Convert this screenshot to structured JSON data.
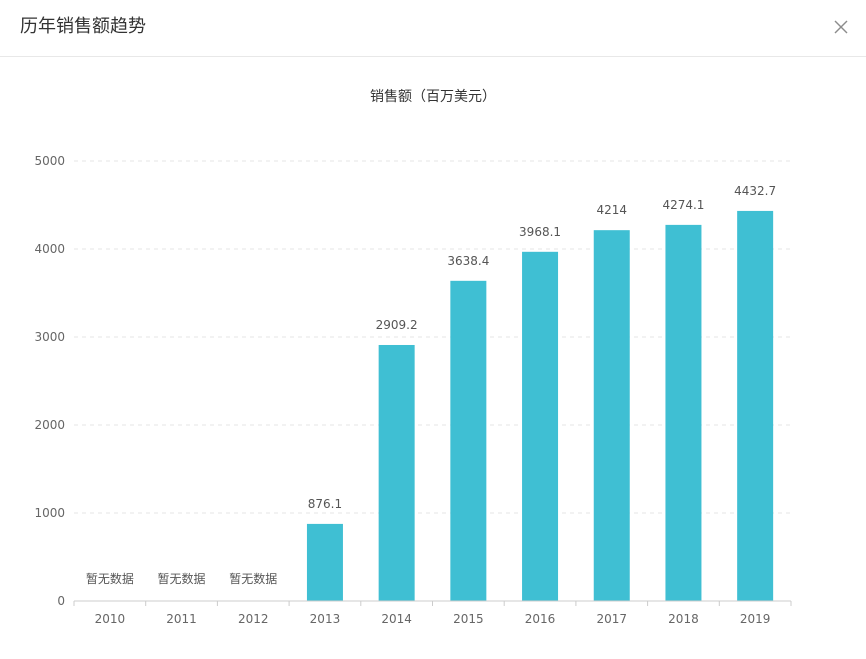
{
  "modal": {
    "title": "历年销售额趋势"
  },
  "icons": {
    "close": "close-icon"
  },
  "colors": {
    "bar": "#3FBFD3",
    "axis": "#cccccc",
    "grid": "#e6e6e6",
    "tick_text": "#666666",
    "label_text": "#555555"
  },
  "chart_data": {
    "type": "bar",
    "title": "销售额（百万美元）",
    "xlabel": "",
    "ylabel": "",
    "categories": [
      "2010",
      "2011",
      "2012",
      "2013",
      "2014",
      "2015",
      "2016",
      "2017",
      "2018",
      "2019"
    ],
    "values": [
      null,
      null,
      null,
      876.1,
      2909.2,
      3638.4,
      3968.1,
      4214,
      4274.1,
      4432.7
    ],
    "data_labels": [
      "暂无数据",
      "暂无数据",
      "暂无数据",
      "876.1",
      "2909.2",
      "3638.4",
      "3968.1",
      "4214",
      "4274.1",
      "4432.7"
    ],
    "ylim": [
      0,
      5000
    ],
    "yticks": [
      "0",
      "1000",
      "2000",
      "3000",
      "4000",
      "5000"
    ],
    "grid": true,
    "legend": false
  }
}
